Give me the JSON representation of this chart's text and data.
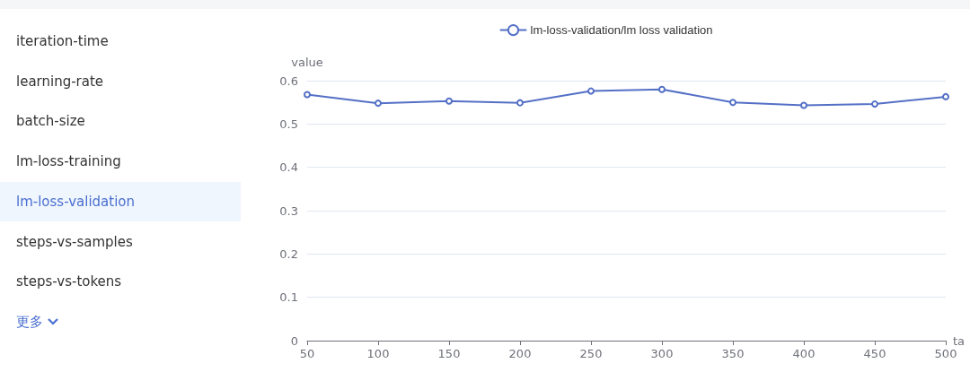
{
  "chart_data": [
    {
      "type": "other",
      "annotations": [
        "iteration-time",
        "learning-rate",
        "batch-size",
        "lm-loss-training",
        "lm-loss-validation",
        "steps-vs-samples",
        "steps-vs-tokens",
        "更多"
      ]
    },
    {
      "type": "line",
      "xlabel": "ta",
      "ylabel": "value",
      "x": [
        50,
        100,
        150,
        200,
        250,
        300,
        350,
        400,
        450,
        500
      ],
      "series": [
        {
          "name": "lm-loss-validation/lm loss validation",
          "color": "#5470c6",
          "values": [
            0.568,
            0.548,
            0.553,
            0.549,
            0.576,
            0.58,
            0.55,
            0.543,
            0.546,
            0.563
          ]
        }
      ],
      "xlim": [
        50,
        500
      ],
      "xticks": [
        50,
        100,
        150,
        200,
        250,
        300,
        350,
        400,
        450,
        500
      ],
      "ylim": [
        0,
        0.6
      ],
      "yticks": [
        0,
        0.1,
        0.2,
        0.3,
        0.4,
        0.5,
        0.6
      ],
      "grid": "y",
      "legend": "top",
      "marker": "circle",
      "line_style": "solid"
    }
  ]
}
